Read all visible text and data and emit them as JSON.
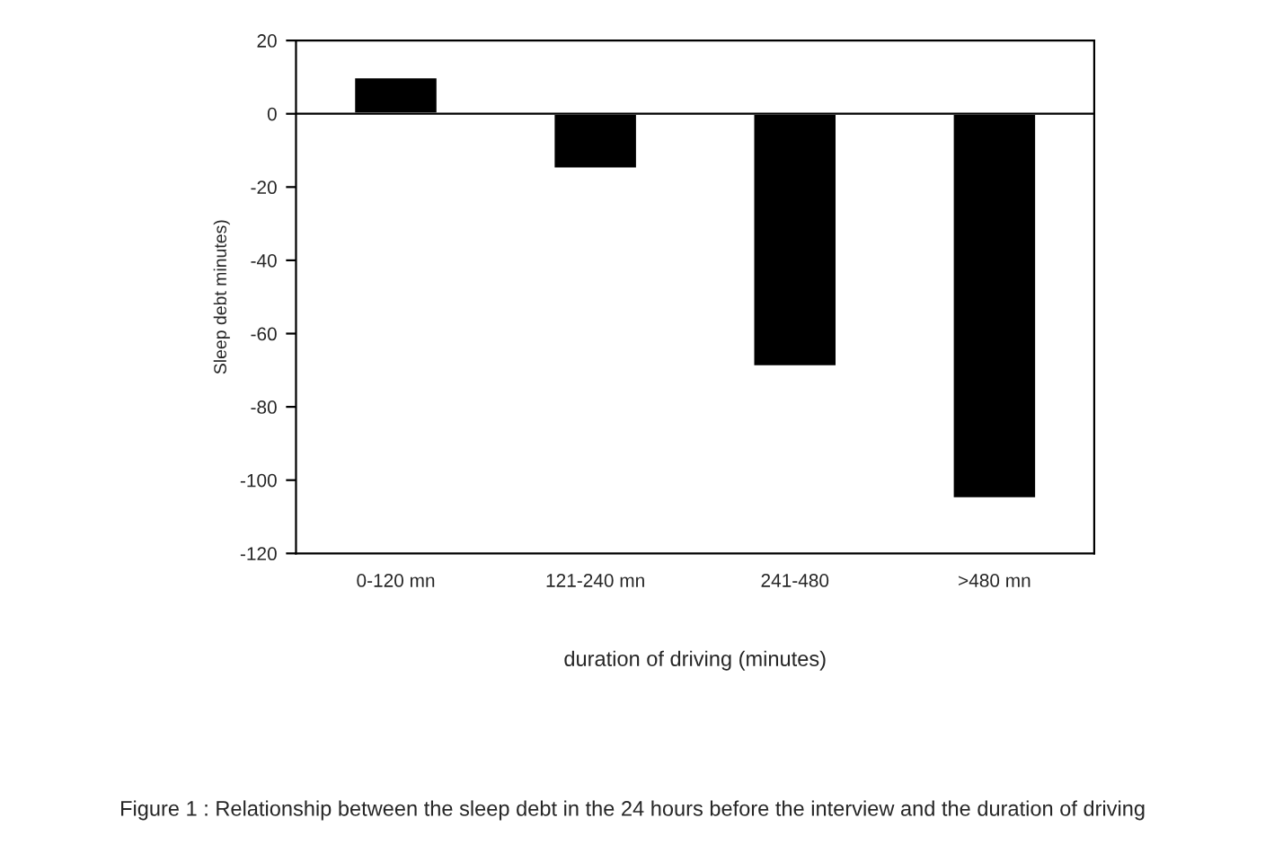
{
  "chart_data": {
    "type": "bar",
    "categories": [
      "0-120 mn",
      "121-240 mn",
      "241-480",
      ">480 mn"
    ],
    "values": [
      10,
      -15,
      -69,
      -105
    ],
    "color": "#000000",
    "xlabel": "duration of driving (minutes)",
    "ylabel": "Sleep debt minutes)",
    "ylim": [
      -120,
      20
    ],
    "yticks": [
      -120,
      -100,
      -80,
      -60,
      -40,
      -20,
      0,
      20
    ],
    "annotations": [
      "Figure 1 : Relationship between the sleep debt in the 24 hours before the interview and the duration of driving"
    ]
  }
}
